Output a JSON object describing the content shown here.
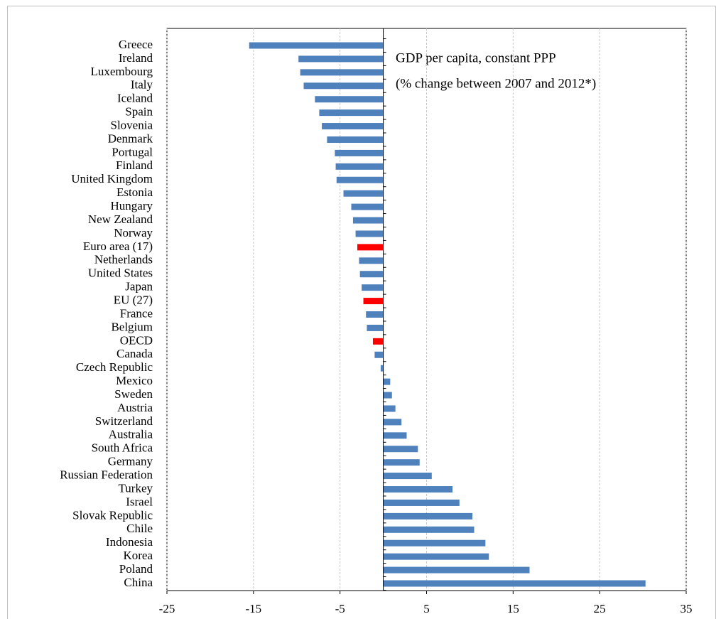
{
  "chart_data": {
    "type": "barh",
    "annotation": [
      "GDP per capita, constant PPP",
      "(% change between 2007 and 2012*)"
    ],
    "categories": [
      "Greece",
      "Ireland",
      "Luxembourg",
      "Italy",
      "Iceland",
      "Spain",
      "Slovenia",
      "Denmark",
      "Portugal",
      "Finland",
      "United Kingdom",
      "Estonia",
      "Hungary",
      "New Zealand",
      "Norway",
      "Euro area (17)",
      "Netherlands",
      "United States",
      "Japan",
      "EU (27)",
      "France",
      "Belgium",
      "OECD",
      "Canada",
      "Czech Republic",
      "Mexico",
      "Sweden",
      "Austria",
      "Switzerland",
      "Australia",
      "South Africa",
      "Germany",
      "Russian Federation",
      "Turkey",
      "Israel",
      "Slovak Republic",
      "Chile",
      "Indonesia",
      "Korea",
      "Poland",
      "China"
    ],
    "values": [
      -15.5,
      -9.8,
      -9.6,
      -9.2,
      -7.9,
      -7.4,
      -7.1,
      -6.5,
      -5.6,
      -5.5,
      -5.4,
      -4.6,
      -3.7,
      -3.5,
      -3.2,
      -3.0,
      -2.8,
      -2.7,
      -2.5,
      -2.3,
      -2.0,
      -1.9,
      -1.2,
      -1.0,
      -0.3,
      0.8,
      1.0,
      1.4,
      2.1,
      2.7,
      4.0,
      4.2,
      5.6,
      8.0,
      8.8,
      10.3,
      10.5,
      11.8,
      12.2,
      16.9,
      30.3
    ],
    "colors": [
      "#4f81bd",
      "#4f81bd",
      "#4f81bd",
      "#4f81bd",
      "#4f81bd",
      "#4f81bd",
      "#4f81bd",
      "#4f81bd",
      "#4f81bd",
      "#4f81bd",
      "#4f81bd",
      "#4f81bd",
      "#4f81bd",
      "#4f81bd",
      "#4f81bd",
      "#ff0000",
      "#4f81bd",
      "#4f81bd",
      "#4f81bd",
      "#ff0000",
      "#4f81bd",
      "#4f81bd",
      "#ff0000",
      "#4f81bd",
      "#4f81bd",
      "#4f81bd",
      "#4f81bd",
      "#4f81bd",
      "#4f81bd",
      "#4f81bd",
      "#4f81bd",
      "#4f81bd",
      "#4f81bd",
      "#4f81bd",
      "#4f81bd",
      "#4f81bd",
      "#4f81bd",
      "#4f81bd",
      "#4f81bd",
      "#4f81bd",
      "#4f81bd"
    ],
    "xlim": [
      -25,
      35
    ],
    "xticks": [
      -25,
      -15,
      -5,
      5,
      15,
      25,
      35
    ],
    "grid": true
  }
}
